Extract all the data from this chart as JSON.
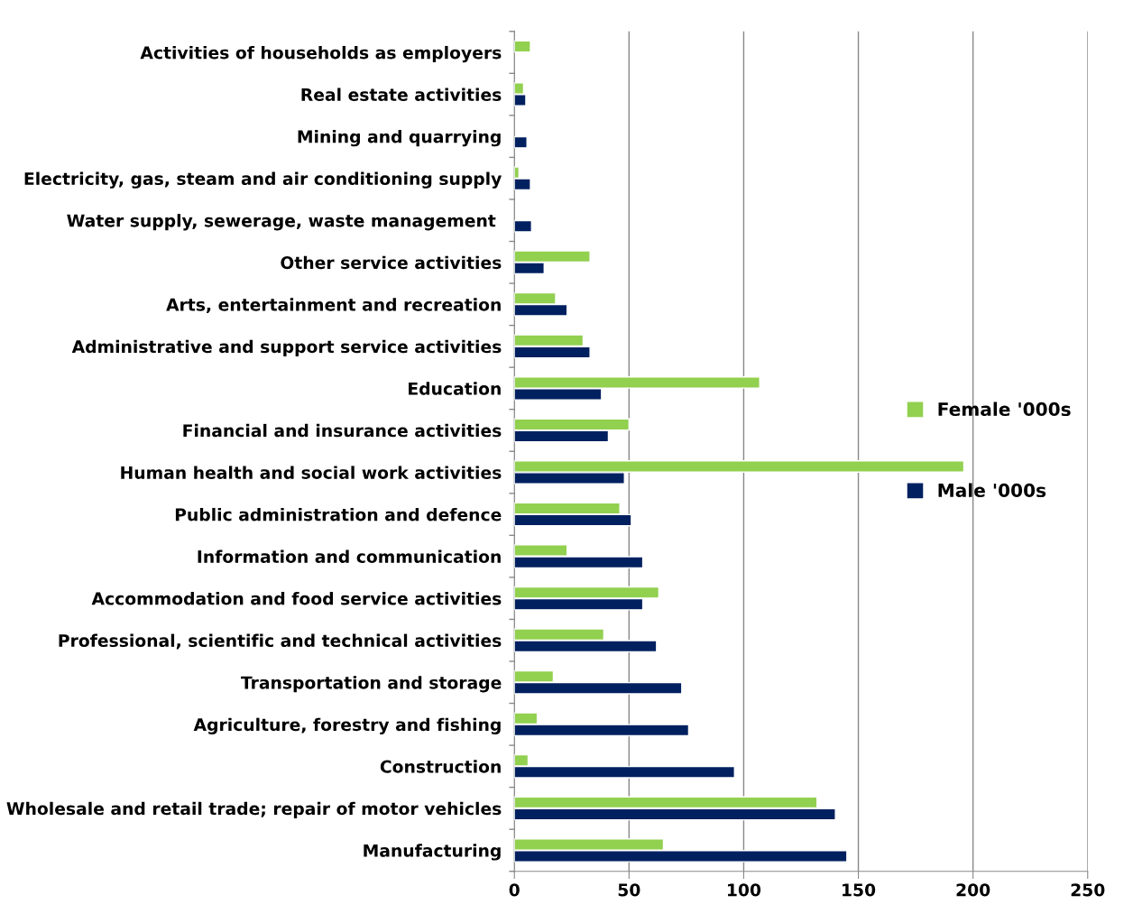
{
  "chart_data": {
    "type": "bar",
    "orientation": "horizontal",
    "categories": [
      "Activities of households as employers",
      "Real estate activities",
      "Mining and quarrying",
      "Electricity, gas, steam and air conditioning supply",
      "Water supply, sewerage, waste management ",
      "Other service activities",
      "Arts, entertainment and recreation",
      "Administrative and support service activities",
      "Education",
      "Financial and insurance activities",
      "Human health and social work activities",
      "Public administration and defence",
      "Information and communication",
      "Accommodation and food service activities",
      "Professional, scientific and technical activities",
      "Transportation and storage",
      "Agriculture, forestry and fishing",
      "Construction",
      "Wholesale and retail trade; repair of motor vehicles",
      "Manufacturing"
    ],
    "series": [
      {
        "name": "Female '000s",
        "color": "#92d050",
        "values": [
          7,
          4,
          null,
          2,
          null,
          33,
          18,
          30,
          107,
          50,
          196,
          46,
          23,
          63,
          39,
          17,
          10,
          6,
          132,
          65
        ]
      },
      {
        "name": "Male '000s",
        "color": "#002060",
        "values": [
          null,
          5,
          5.5,
          7,
          7.5,
          13,
          23,
          33,
          38,
          41,
          48,
          51,
          56,
          56,
          62,
          73,
          76,
          96,
          140,
          145
        ]
      }
    ],
    "xlim": [
      0,
      250
    ],
    "xticks": [
      0,
      50,
      100,
      150,
      200,
      250
    ],
    "grid": "x",
    "legend": "right"
  }
}
